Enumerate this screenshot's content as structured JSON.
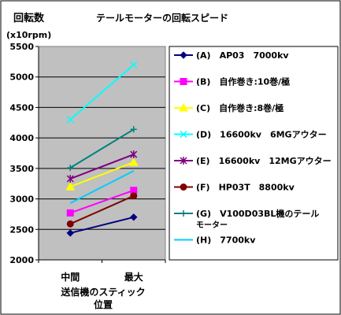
{
  "chart_data": {
    "type": "line",
    "title": "テールモーターの回転スピード",
    "ylabel": "回転数",
    "yunit": "(x10rpm)",
    "xlabel": [
      "送信機のスティック",
      "位置"
    ],
    "categories": [
      "中間",
      "最大"
    ],
    "yticks": [
      "2000",
      "2500",
      "3000",
      "3500",
      "4000",
      "4500",
      "5000",
      "5500"
    ],
    "ylim": [
      2000,
      5500
    ],
    "grid": true,
    "legend_position": "right",
    "plot_background": "#C0C0C0",
    "series": [
      {
        "name": "(A)　AP03　7000kv",
        "values": [
          2440,
          2700
        ],
        "color": "#000080",
        "marker": "diamond"
      },
      {
        "name": "(B)　自作巻き:10巻/極",
        "values": [
          2770,
          3140
        ],
        "color": "#FF00FF",
        "marker": "square"
      },
      {
        "name": "(C)　自作巻き:8巻/極",
        "values": [
          3200,
          3600
        ],
        "color": "#FFFF00",
        "marker": "triangle"
      },
      {
        "name": "(D)　16600kv　6MGアウター",
        "values": [
          4300,
          5200
        ],
        "color": "#00FFFF",
        "marker": "x"
      },
      {
        "name": "(E)　16600kv　12MGアウター",
        "values": [
          3330,
          3730
        ],
        "color": "#800080",
        "marker": "star"
      },
      {
        "name": "(F)　HP03T　8800kv",
        "values": [
          2590,
          3050
        ],
        "color": "#800000",
        "marker": "circle"
      },
      {
        "name": "(G)　V100D03BL機のテールモーター",
        "values": [
          3510,
          4140
        ],
        "color": "#008080",
        "marker": "plus"
      },
      {
        "name": "(H)　7700kv",
        "values": [
          2930,
          3460
        ],
        "color": "#00CCFF",
        "marker": "none"
      }
    ]
  }
}
